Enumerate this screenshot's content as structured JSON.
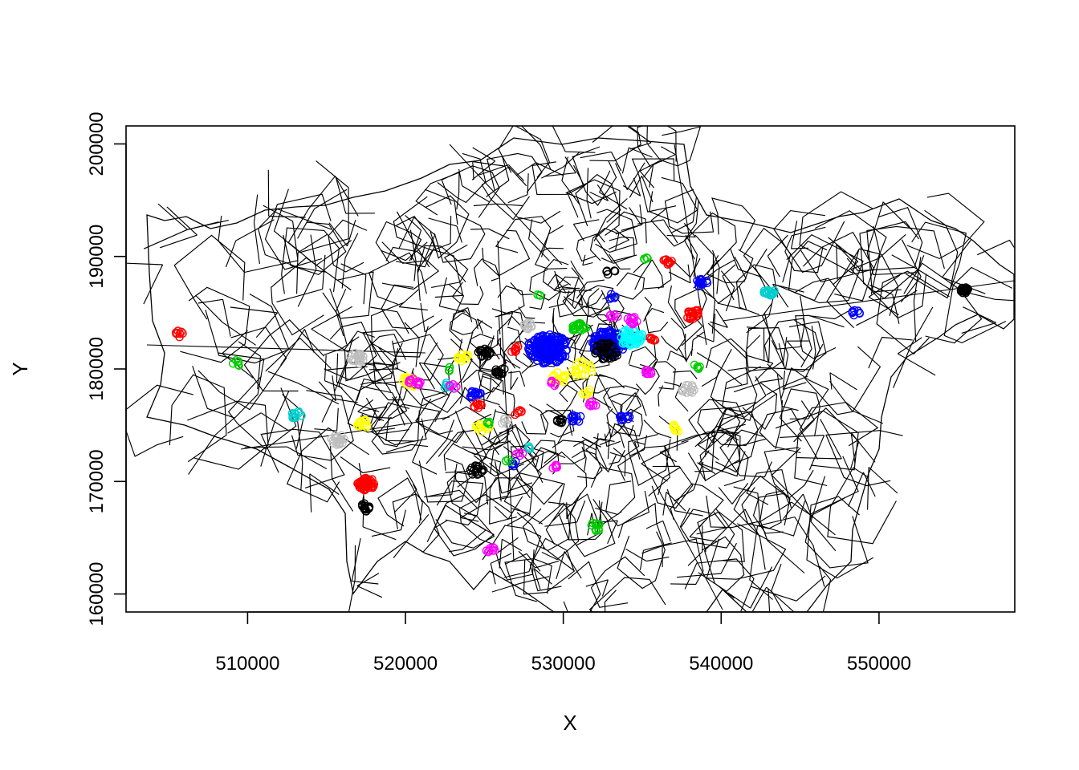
{
  "chart_data": {
    "type": "scatter",
    "title": "",
    "xlabel": "X",
    "ylabel": "Y",
    "xlim": [
      502300,
      558600
    ],
    "ylim": [
      158400,
      201600
    ],
    "x_ticks": [
      {
        "value": 510000,
        "label": "510000"
      },
      {
        "value": 520000,
        "label": "520000"
      },
      {
        "value": 530000,
        "label": "530000"
      },
      {
        "value": 540000,
        "label": "540000"
      },
      {
        "value": 550000,
        "label": "550000"
      }
    ],
    "y_ticks": [
      {
        "value": 160000,
        "label": "160000"
      },
      {
        "value": 170000,
        "label": "170000"
      },
      {
        "value": 180000,
        "label": "180000"
      },
      {
        "value": 190000,
        "label": "190000"
      },
      {
        "value": 200000,
        "label": "200000"
      }
    ],
    "background": "London ward boundaries (outline polygons)",
    "boundary_color": "#000000",
    "clusters": [
      {
        "color": "#0000ff",
        "x": 529000,
        "y": 181800,
        "r": 1300,
        "n": 120,
        "fill": true
      },
      {
        "color": "#0000ff",
        "x": 532900,
        "y": 182300,
        "r": 1100,
        "n": 110,
        "fill": true
      },
      {
        "color": "#00ffff",
        "x": 534300,
        "y": 182800,
        "r": 750,
        "n": 45
      },
      {
        "color": "#000000",
        "x": 532700,
        "y": 181500,
        "r": 800,
        "n": 40
      },
      {
        "color": "#00cd00",
        "x": 531000,
        "y": 183600,
        "r": 450,
        "n": 25
      },
      {
        "color": "#ffff00",
        "x": 531200,
        "y": 180000,
        "r": 750,
        "n": 20
      },
      {
        "color": "#ffff00",
        "x": 529700,
        "y": 179200,
        "r": 500,
        "n": 15
      },
      {
        "color": "#ff00ff",
        "x": 534400,
        "y": 184300,
        "r": 350,
        "n": 12
      },
      {
        "color": "#ff0000",
        "x": 517500,
        "y": 169800,
        "r": 550,
        "n": 55
      },
      {
        "color": "#000000",
        "x": 517500,
        "y": 167700,
        "r": 350,
        "n": 15
      },
      {
        "color": "#000000",
        "x": 555400,
        "y": 187000,
        "r": 250,
        "n": 22
      },
      {
        "color": "#00cdcd",
        "x": 543100,
        "y": 186800,
        "r": 400,
        "n": 18
      },
      {
        "color": "#ff0000",
        "x": 538200,
        "y": 184900,
        "r": 500,
        "n": 24
      },
      {
        "color": "#0000ff",
        "x": 538800,
        "y": 187600,
        "r": 400,
        "n": 14
      },
      {
        "color": "#0000ff",
        "x": 548500,
        "y": 185000,
        "r": 300,
        "n": 8
      },
      {
        "color": "#ff0000",
        "x": 536600,
        "y": 189500,
        "r": 300,
        "n": 10
      },
      {
        "color": "#00cd00",
        "x": 535200,
        "y": 189900,
        "r": 200,
        "n": 4
      },
      {
        "color": "#000000",
        "x": 533000,
        "y": 188600,
        "r": 300,
        "n": 5
      },
      {
        "color": "#ff0000",
        "x": 505700,
        "y": 183100,
        "r": 300,
        "n": 8
      },
      {
        "color": "#00cd00",
        "x": 509300,
        "y": 180500,
        "r": 250,
        "n": 8
      },
      {
        "color": "#00cdcd",
        "x": 513100,
        "y": 175900,
        "r": 350,
        "n": 12
      },
      {
        "color": "#bebebe",
        "x": 517000,
        "y": 181000,
        "r": 500,
        "n": 20
      },
      {
        "color": "#bebebe",
        "x": 515700,
        "y": 173700,
        "r": 450,
        "n": 20
      },
      {
        "color": "#ffff00",
        "x": 517300,
        "y": 175200,
        "r": 450,
        "n": 15
      },
      {
        "color": "#ffff00",
        "x": 520200,
        "y": 178800,
        "r": 500,
        "n": 18
      },
      {
        "color": "#ff00ff",
        "x": 520600,
        "y": 178800,
        "r": 400,
        "n": 12
      },
      {
        "color": "#000000",
        "x": 525000,
        "y": 181400,
        "r": 400,
        "n": 18
      },
      {
        "color": "#000000",
        "x": 526000,
        "y": 179800,
        "r": 350,
        "n": 14
      },
      {
        "color": "#ffff00",
        "x": 523600,
        "y": 181100,
        "r": 400,
        "n": 10
      },
      {
        "color": "#0000ff",
        "x": 524400,
        "y": 177800,
        "r": 400,
        "n": 12
      },
      {
        "color": "#ff0000",
        "x": 524600,
        "y": 176700,
        "r": 300,
        "n": 8
      },
      {
        "color": "#00cdcd",
        "x": 522700,
        "y": 178500,
        "r": 300,
        "n": 8
      },
      {
        "color": "#00cd00",
        "x": 522700,
        "y": 180000,
        "r": 200,
        "n": 5
      },
      {
        "color": "#ffff00",
        "x": 524900,
        "y": 174900,
        "r": 450,
        "n": 12
      },
      {
        "color": "#00cd00",
        "x": 525200,
        "y": 175200,
        "r": 200,
        "n": 4
      },
      {
        "color": "#ff0000",
        "x": 527000,
        "y": 181700,
        "r": 350,
        "n": 8
      },
      {
        "color": "#bebebe",
        "x": 527800,
        "y": 183800,
        "r": 350,
        "n": 10
      },
      {
        "color": "#ff0000",
        "x": 527100,
        "y": 176100,
        "r": 300,
        "n": 6
      },
      {
        "color": "#000000",
        "x": 529800,
        "y": 175400,
        "r": 300,
        "n": 8
      },
      {
        "color": "#0000ff",
        "x": 530800,
        "y": 175600,
        "r": 350,
        "n": 10
      },
      {
        "color": "#0000ff",
        "x": 533900,
        "y": 175700,
        "r": 350,
        "n": 10
      },
      {
        "color": "#ff00ff",
        "x": 531800,
        "y": 176800,
        "r": 300,
        "n": 8
      },
      {
        "color": "#ff00ff",
        "x": 529400,
        "y": 171300,
        "r": 300,
        "n": 6
      },
      {
        "color": "#00cdcd",
        "x": 527800,
        "y": 173100,
        "r": 250,
        "n": 5
      },
      {
        "color": "#ff00ff",
        "x": 527200,
        "y": 172400,
        "r": 250,
        "n": 5
      },
      {
        "color": "#0000ff",
        "x": 526900,
        "y": 171600,
        "r": 250,
        "n": 5
      },
      {
        "color": "#00cd00",
        "x": 526500,
        "y": 171800,
        "r": 200,
        "n": 4
      },
      {
        "color": "#000000",
        "x": 524500,
        "y": 171000,
        "r": 450,
        "n": 14
      },
      {
        "color": "#00cd00",
        "x": 532100,
        "y": 166000,
        "r": 400,
        "n": 12
      },
      {
        "color": "#ff00ff",
        "x": 525400,
        "y": 163900,
        "r": 300,
        "n": 8
      },
      {
        "color": "#bebebe",
        "x": 537900,
        "y": 178200,
        "r": 450,
        "n": 14
      },
      {
        "color": "#ffff00",
        "x": 537200,
        "y": 174800,
        "r": 350,
        "n": 8
      },
      {
        "color": "#00cd00",
        "x": 538500,
        "y": 180200,
        "r": 250,
        "n": 5
      },
      {
        "color": "#ff00ff",
        "x": 535300,
        "y": 179600,
        "r": 300,
        "n": 8
      },
      {
        "color": "#ff0000",
        "x": 535700,
        "y": 182700,
        "r": 250,
        "n": 6
      },
      {
        "color": "#ff00ff",
        "x": 533200,
        "y": 184700,
        "r": 250,
        "n": 6
      },
      {
        "color": "#0000ff",
        "x": 533100,
        "y": 186400,
        "r": 250,
        "n": 5
      },
      {
        "color": "#00cd00",
        "x": 528500,
        "y": 186600,
        "r": 150,
        "n": 3
      },
      {
        "color": "#ff00ff",
        "x": 523000,
        "y": 178400,
        "r": 250,
        "n": 5
      },
      {
        "color": "#bebebe",
        "x": 526300,
        "y": 175300,
        "r": 300,
        "n": 6
      },
      {
        "color": "#ffff00",
        "x": 531400,
        "y": 178000,
        "r": 300,
        "n": 6
      },
      {
        "color": "#ff00ff",
        "x": 529300,
        "y": 178700,
        "r": 250,
        "n": 5
      }
    ]
  }
}
